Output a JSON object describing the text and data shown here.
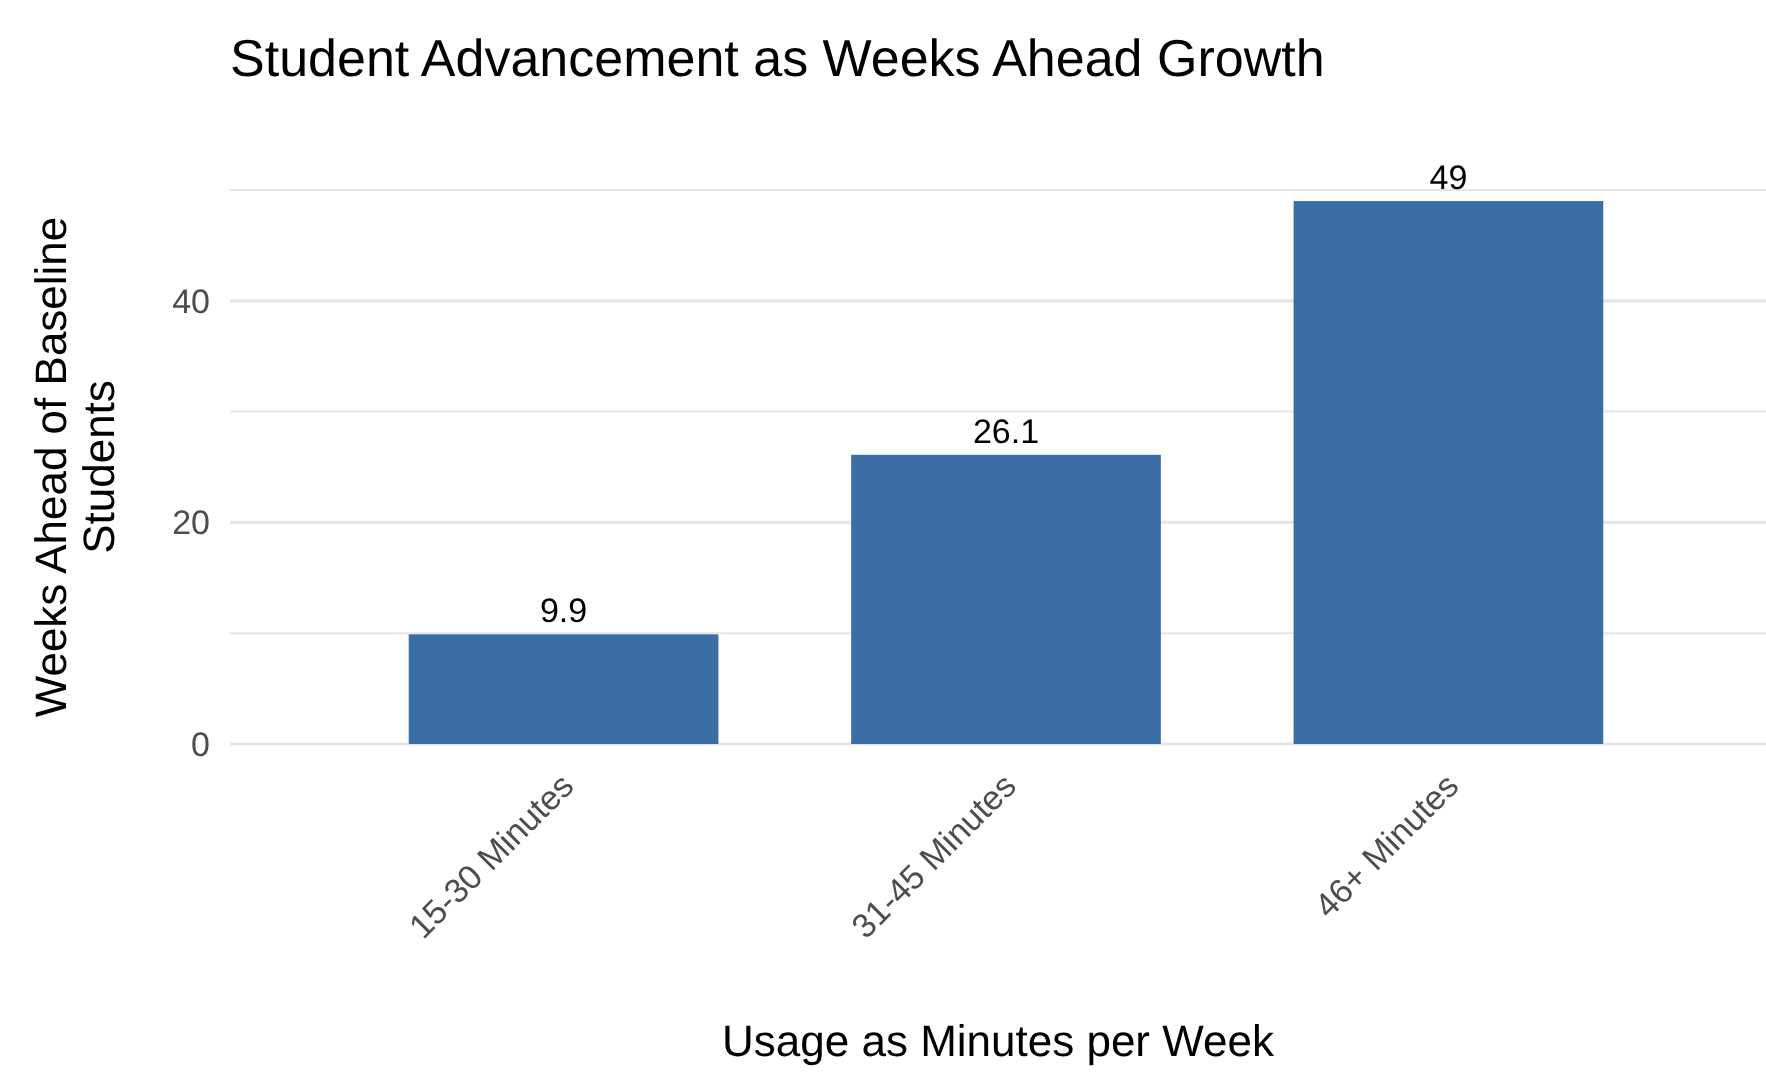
{
  "chart_data": {
    "type": "bar",
    "title": "Student Advancement as Weeks Ahead Growth",
    "xlabel": "Usage as Minutes per Week",
    "ylabel": "Weeks Ahead of Baseline\nStudents",
    "categories": [
      "15-30 Minutes",
      "31-45 Minutes",
      "46+ Minutes"
    ],
    "values": [
      9.9,
      26.1,
      49
    ],
    "color": "#3a6ea5",
    "data_labels": true,
    "ylim": [
      0,
      50
    ],
    "yticks": [
      0,
      {
        "value": 10,
        "label": null
      },
      20,
      {
        "value": 30,
        "label": null
      },
      40,
      {
        "value": 50,
        "label": null
      }
    ],
    "grid": true
  }
}
